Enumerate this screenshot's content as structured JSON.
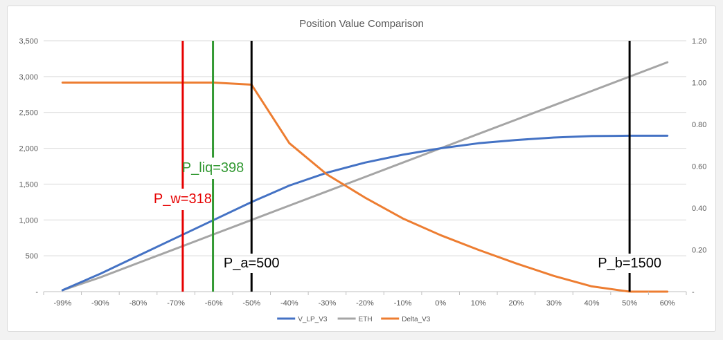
{
  "chart_data": {
    "type": "line",
    "title": "Position Value Comparison",
    "categories": [
      "-99%",
      "-90%",
      "-80%",
      "-70%",
      "-60%",
      "-50%",
      "-40%",
      "-30%",
      "-20%",
      "-10%",
      "0%",
      "10%",
      "20%",
      "30%",
      "40%",
      "50%",
      "60%"
    ],
    "y_left": {
      "ylim": [
        0,
        3500
      ],
      "ticks": [
        "-",
        "500",
        "1,000",
        "1,500",
        "2,000",
        "2,500",
        "3,000",
        "3,500"
      ]
    },
    "y_right": {
      "ylim": [
        0,
        1.2
      ],
      "ticks": [
        "-",
        "0.20",
        "0.40",
        "0.60",
        "0.80",
        "1.00",
        "1.20"
      ]
    },
    "series": [
      {
        "name": "V_LP_V3",
        "axis": "left",
        "color": "#4472c4",
        "values": [
          20,
          250,
          500,
          750,
          1000,
          1250,
          1480,
          1660,
          1800,
          1910,
          2000,
          2070,
          2115,
          2150,
          2170,
          2175,
          2175
        ]
      },
      {
        "name": "ETH",
        "axis": "left",
        "color": "#a5a5a5",
        "values": [
          20,
          200,
          400,
          600,
          800,
          1000,
          1200,
          1400,
          1600,
          1800,
          2000,
          2200,
          2400,
          2600,
          2800,
          3000,
          3200
        ]
      },
      {
        "name": "Delta_V3",
        "axis": "right",
        "color": "#ed7d31",
        "values": [
          1.0,
          1.0,
          1.0,
          1.0,
          1.0,
          0.99,
          0.71,
          0.56,
          0.45,
          0.35,
          0.27,
          0.2,
          0.135,
          0.075,
          0.025,
          0.0,
          0.0
        ]
      }
    ],
    "annotations": [
      {
        "label": "P_w=318",
        "color": "#e60000",
        "x_pct": -68.2
      },
      {
        "label": "P_liq=398",
        "color": "#339933",
        "x_pct": -60.2
      },
      {
        "label": "P_a=500",
        "color": "#000000",
        "x_pct": -50
      },
      {
        "label": "P_b=1500",
        "color": "#000000",
        "x_pct": 50
      }
    ],
    "legend": "bottom",
    "grid": true
  }
}
